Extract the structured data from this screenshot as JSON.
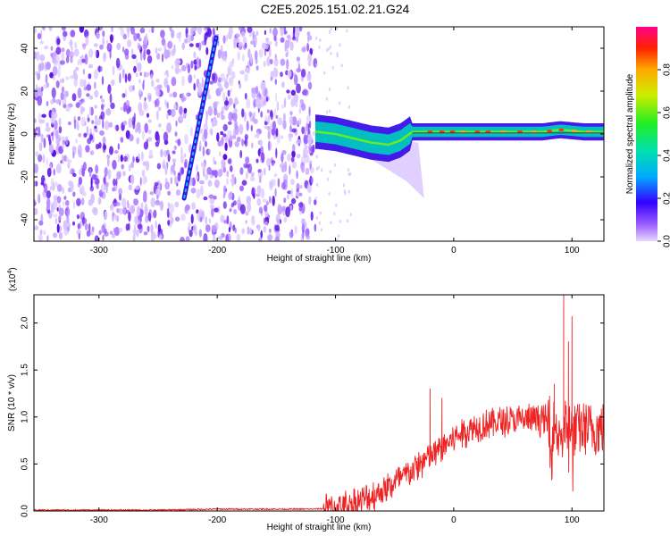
{
  "title": "C2E5.2025.151.02.21.G24",
  "chart_data": [
    {
      "type": "heatmap",
      "xlabel": "Height of straight line (km)",
      "ylabel": "Frequency (Hz)",
      "xlim": [
        -355,
        127
      ],
      "ylim": [
        -50,
        50
      ],
      "xticks": [
        -300,
        -200,
        -100,
        0,
        100
      ],
      "yticks": [
        -40,
        -20,
        0,
        20,
        40
      ],
      "colorbar": {
        "label": "Normalized spectral amplitude",
        "range": [
          0,
          1
        ],
        "ticks": [
          "0.0",
          "0.2",
          "0.4",
          "0.6",
          "0.8"
        ]
      },
      "features": {
        "noise_region_x": [
          -355,
          -117
        ],
        "diagonal_streak": {
          "x": [
            -228,
            -201
          ],
          "y": [
            -30,
            45
          ]
        },
        "tone_x": [
          -117,
          127
        ],
        "tone_frequency_hz": [
          [
            -115,
            1
          ],
          [
            -100,
            0
          ],
          [
            -85,
            -2
          ],
          [
            -70,
            -4
          ],
          [
            -55,
            -5
          ],
          [
            -45,
            -3
          ],
          [
            -35,
            1
          ],
          [
            -20,
            1
          ],
          [
            0,
            1
          ],
          [
            25,
            1
          ],
          [
            50,
            1
          ],
          [
            75,
            1
          ],
          [
            90,
            2
          ],
          [
            110,
            1
          ],
          [
            127,
            1
          ]
        ]
      }
    },
    {
      "type": "line",
      "xlabel": "Height of straight line (km)",
      "ylabel": "SNR (10 * v/v)",
      "y_multiplier": "(x10^4)",
      "y_multiplier_base": "(x10",
      "y_multiplier_exp": "4",
      "y_multiplier_close": ")",
      "xlim": [
        -355,
        127
      ],
      "ylim": [
        0,
        2.3
      ],
      "xticks": [
        -300,
        -200,
        -100,
        0,
        100
      ],
      "yticks": [
        "0.0",
        "0.5",
        "1.0",
        "1.5",
        "2.0"
      ],
      "color": "#ee2222",
      "series": [
        {
          "x": [
            -355,
            -300,
            -250,
            -200,
            -150,
            -120,
            -100,
            -90,
            -80,
            -70,
            -60,
            -50,
            -40,
            -30,
            -20,
            -10,
            0,
            10,
            20,
            30,
            40,
            50,
            60,
            70,
            80,
            85,
            90,
            95,
            100,
            110,
            120,
            127
          ],
          "values": [
            0.01,
            0.01,
            0.01,
            0.02,
            0.02,
            0.02,
            0.03,
            0.06,
            0.1,
            0.15,
            0.22,
            0.3,
            0.38,
            0.48,
            0.58,
            0.67,
            0.78,
            0.85,
            0.9,
            0.93,
            0.95,
            0.96,
            0.97,
            0.98,
            0.95,
            0.9,
            0.85,
            0.9,
            0.85,
            0.88,
            0.87,
            0.88
          ]
        }
      ],
      "spikes": [
        [
          -20,
          1.3
        ],
        [
          -10,
          1.2
        ],
        [
          30,
          1.05
        ],
        [
          85,
          1.35
        ],
        [
          93,
          2.3
        ],
        [
          97,
          1.8
        ],
        [
          100,
          2.07
        ]
      ]
    }
  ]
}
